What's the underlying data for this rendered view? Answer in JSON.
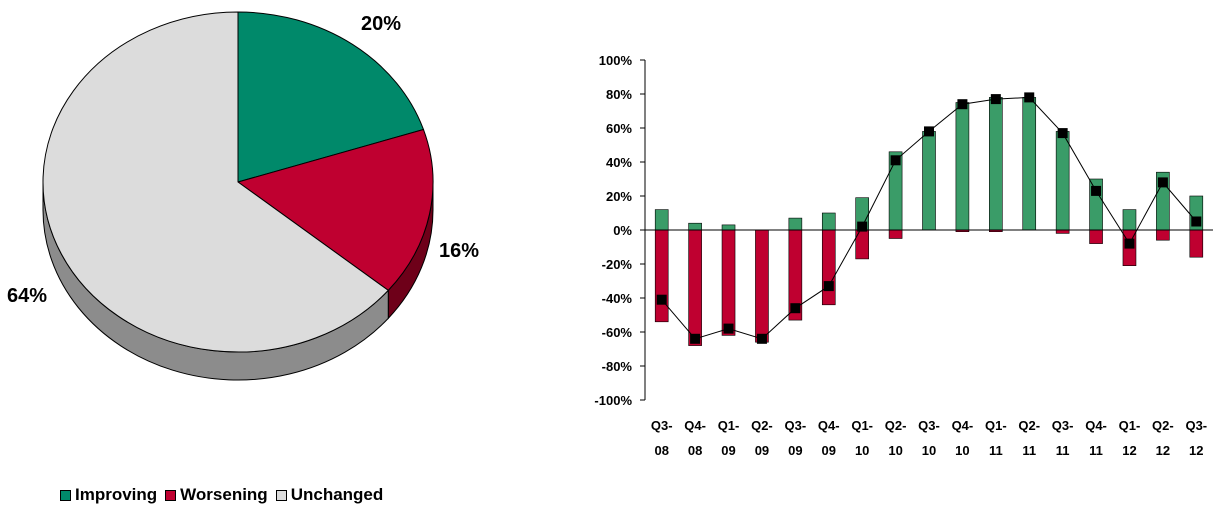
{
  "chart_data": [
    {
      "type": "pie",
      "title": "",
      "slices": [
        {
          "name": "Improving",
          "value": 20,
          "label": "20%",
          "color": "#00896a",
          "side_color": "#005a44"
        },
        {
          "name": "Worsening",
          "value": 16,
          "label": "16%",
          "color": "#bf0030",
          "side_color": "#6e0019"
        },
        {
          "name": "Unchanged",
          "value": 64,
          "label": "64%",
          "color": "#dcdcdc",
          "side_color": "#8c8c8c"
        }
      ]
    },
    {
      "type": "bar",
      "title": "",
      "xlabel": "",
      "ylabel": "",
      "ylim": [
        -100,
        100
      ],
      "yticks": [
        "100%",
        "80%",
        "60%",
        "40%",
        "20%",
        "0%",
        "-20%",
        "-40%",
        "-60%",
        "-80%",
        "-100%"
      ],
      "categories": [
        [
          "Q3-",
          "08"
        ],
        [
          "Q4-",
          "08"
        ],
        [
          "Q1-",
          "09"
        ],
        [
          "Q2-",
          "09"
        ],
        [
          "Q3-",
          "09"
        ],
        [
          "Q4-",
          "09"
        ],
        [
          "Q1-",
          "10"
        ],
        [
          "Q2-",
          "10"
        ],
        [
          "Q3-",
          "10"
        ],
        [
          "Q4-",
          "10"
        ],
        [
          "Q1-",
          "11"
        ],
        [
          "Q2-",
          "11"
        ],
        [
          "Q3-",
          "11"
        ],
        [
          "Q4-",
          "11"
        ],
        [
          "Q1-",
          "12"
        ],
        [
          "Q2-",
          "12"
        ],
        [
          "Q3-",
          "12"
        ]
      ],
      "series": [
        {
          "name": "Improving",
          "color": "#3a9c68",
          "values": [
            12,
            4,
            3,
            0,
            7,
            10,
            19,
            46,
            58,
            75,
            78,
            78,
            58,
            30,
            12,
            34,
            20
          ]
        },
        {
          "name": "Worsening",
          "color": "#bf0030",
          "values": [
            -54,
            -68,
            -62,
            -66,
            -53,
            -44,
            -17,
            -5,
            0,
            -1,
            -1,
            0,
            -2,
            -8,
            -21,
            -6,
            -16
          ]
        },
        {
          "name": "",
          "type": "line",
          "color": "#000000",
          "values": [
            -41,
            -64,
            -58,
            -64,
            -46,
            -33,
            2,
            41,
            58,
            74,
            77,
            78,
            57,
            23,
            -8,
            28,
            5
          ]
        }
      ]
    }
  ],
  "legend": {
    "items": [
      {
        "label": "Improving",
        "color": "#00896a"
      },
      {
        "label": "Worsening",
        "color": "#bf0030"
      },
      {
        "label": "Unchanged",
        "color": "#dcdcdc"
      }
    ]
  }
}
